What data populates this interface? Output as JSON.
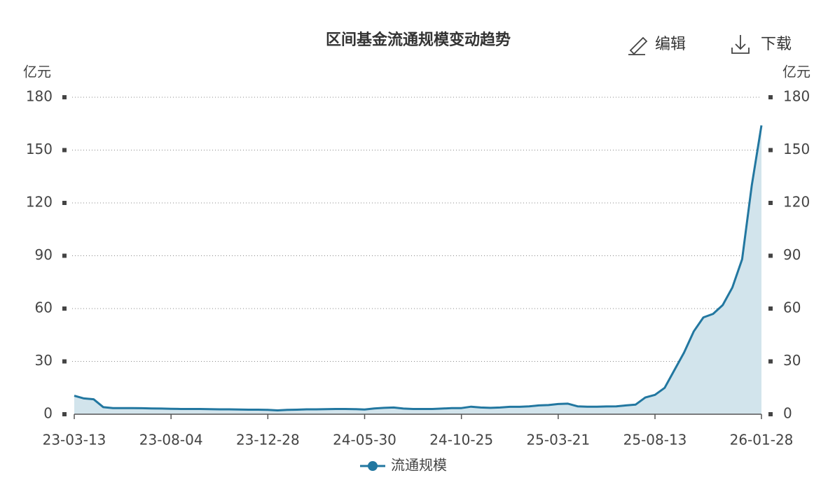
{
  "chart_data": {
    "type": "line",
    "title": "区间基金流通规模变动趋势",
    "actions": [
      "编辑",
      "下载"
    ],
    "y_label": "亿元",
    "y2_label": "亿元",
    "categories": [
      "23-03-13",
      null,
      null,
      null,
      null,
      null,
      null,
      null,
      null,
      null,
      "23-08-04",
      null,
      null,
      null,
      null,
      null,
      null,
      null,
      null,
      null,
      "23-12-28",
      null,
      null,
      null,
      null,
      null,
      null,
      null,
      null,
      null,
      "24-05-30",
      null,
      null,
      null,
      null,
      null,
      null,
      null,
      null,
      null,
      "24-10-25",
      null,
      null,
      null,
      null,
      null,
      null,
      null,
      null,
      null,
      "25-03-21",
      null,
      null,
      null,
      null,
      null,
      null,
      null,
      null,
      null,
      "25-08-13",
      null,
      null,
      null,
      null,
      null,
      null,
      null,
      null,
      null,
      null,
      "26-01-28"
    ],
    "series": [
      {
        "name": "流通规模",
        "color": "#2277a0",
        "area_color": "#d2e4ec",
        "values": [
          10.5,
          9,
          8.5,
          4,
          3.5,
          3.5,
          3.5,
          3.4,
          3.3,
          3.2,
          3.1,
          3,
          3,
          3,
          2.9,
          2.8,
          2.8,
          2.7,
          2.6,
          2.6,
          2.5,
          2.2,
          2.5,
          2.6,
          2.8,
          2.8,
          2.9,
          3,
          3,
          2.9,
          2.7,
          3.3,
          3.6,
          3.8,
          3.2,
          3,
          3,
          3,
          3.2,
          3.5,
          3.5,
          4.3,
          3.8,
          3.6,
          3.8,
          4.2,
          4.2,
          4.5,
          5,
          5.2,
          5.8,
          6,
          4.5,
          4.3,
          4.3,
          4.4,
          4.5,
          5,
          5.5,
          9.5,
          11,
          15,
          25,
          35,
          47,
          55,
          57,
          62,
          72,
          88,
          130,
          164
        ]
      }
    ],
    "ylim": [
      0,
      180
    ],
    "yticks": [
      0,
      30,
      60,
      90,
      120,
      150,
      180
    ],
    "y2lim": [
      0,
      180
    ],
    "y2ticks": [
      0,
      30,
      60,
      90,
      120,
      150,
      180
    ],
    "grid": true
  }
}
